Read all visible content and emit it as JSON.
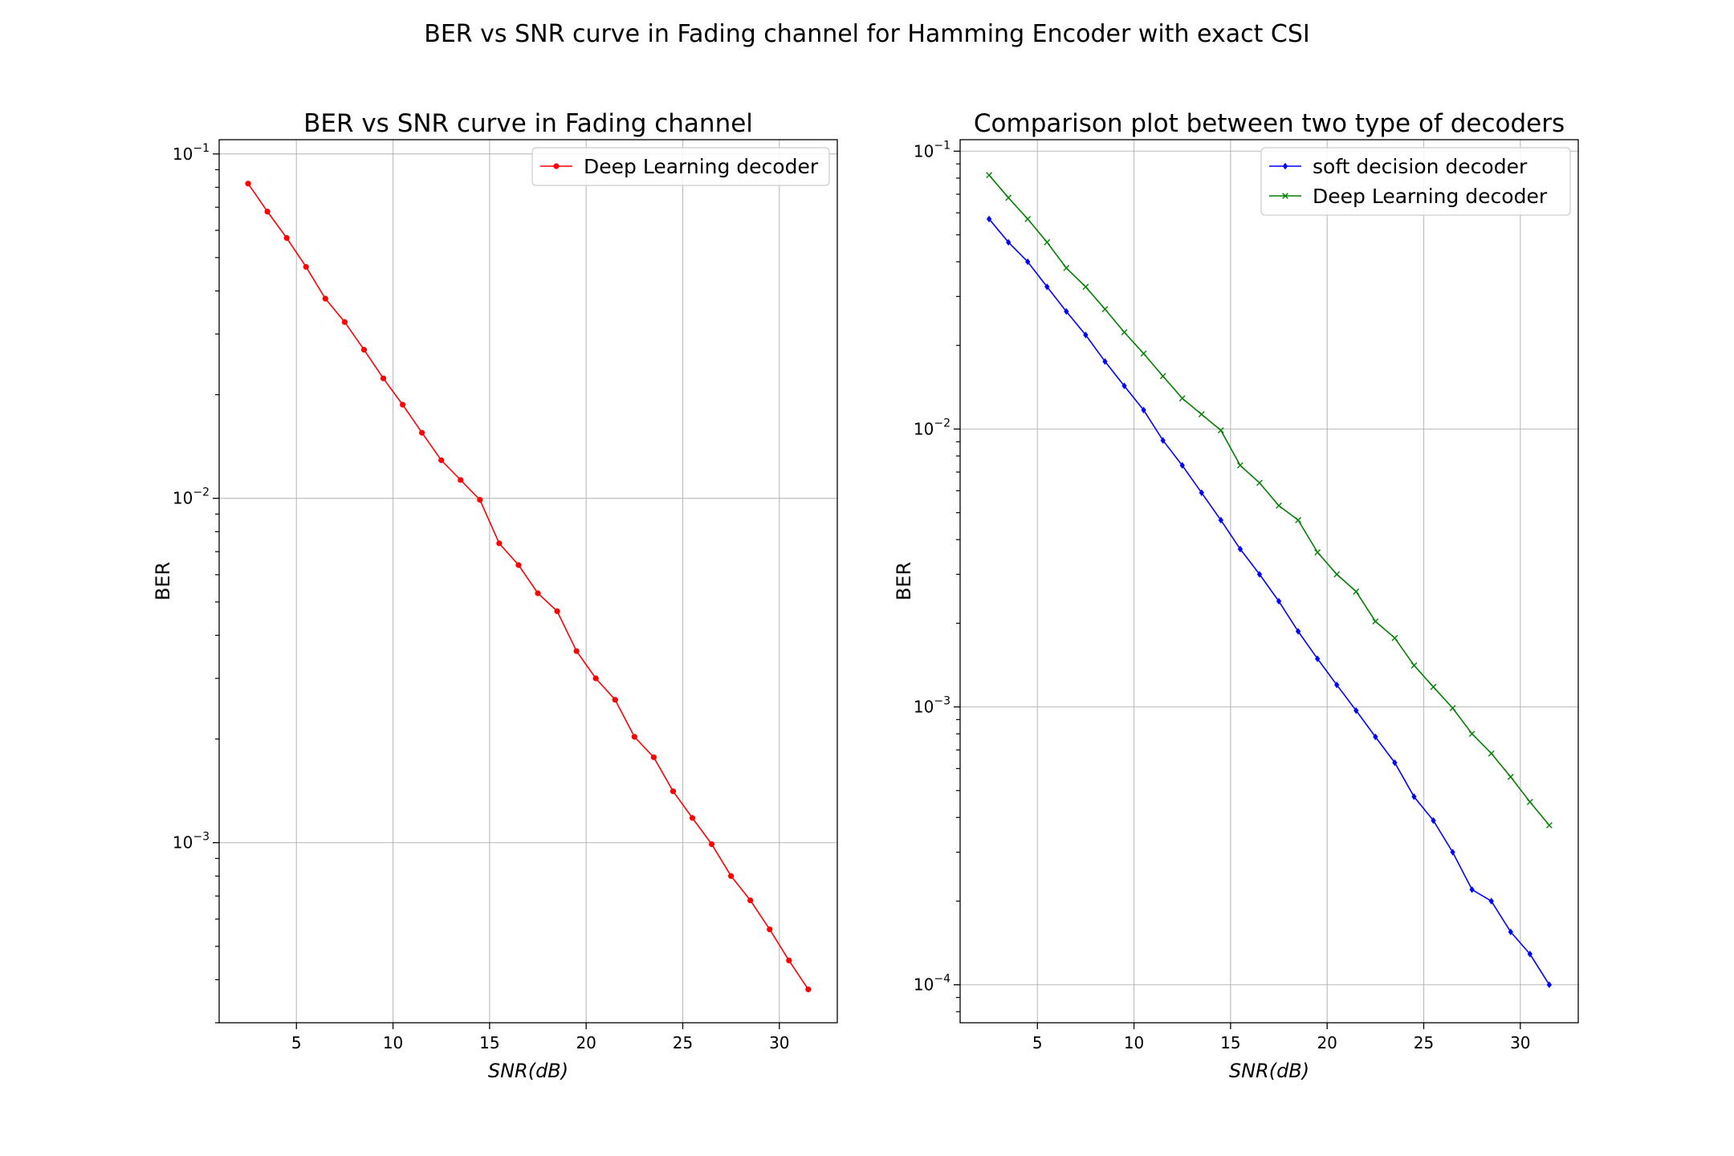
{
  "figure": {
    "suptitle": "BER vs SNR curve in Fading channel for Hamming Encoder with exact CSI"
  },
  "chart_data": [
    {
      "type": "line",
      "title": "BER vs SNR curve in Fading channel",
      "xlabel": "SNR(dB)",
      "ylabel": "BER",
      "yscale": "log",
      "xlim": [
        1,
        33
      ],
      "ylim": [
        0.0003,
        0.11
      ],
      "xticks": [
        5,
        10,
        15,
        20,
        25,
        30
      ],
      "yticks": [
        {
          "value": 0.1,
          "base": "10",
          "exp": "−1"
        },
        {
          "value": 0.01,
          "base": "10",
          "exp": "−2"
        },
        {
          "value": 0.001,
          "base": "10",
          "exp": "−3"
        }
      ],
      "grid": true,
      "legend": "top-right",
      "series": [
        {
          "name": "Deep Learning decoder",
          "color": "#ff0000",
          "marker": "dot",
          "x": [
            2.5,
            3.5,
            4.5,
            5.5,
            6.5,
            7.5,
            8.5,
            9.5,
            10.5,
            11.5,
            12.5,
            13.5,
            14.5,
            15.5,
            16.5,
            17.5,
            18.5,
            19.5,
            20.5,
            21.5,
            22.5,
            23.5,
            24.5,
            25.5,
            26.5,
            27.5,
            28.5,
            29.5,
            30.5,
            31.5
          ],
          "values": [
            0.082,
            0.068,
            0.057,
            0.047,
            0.038,
            0.0325,
            0.027,
            0.0223,
            0.0187,
            0.0155,
            0.0129,
            0.0113,
            0.0099,
            0.0074,
            0.0064,
            0.0053,
            0.0047,
            0.0036,
            0.003,
            0.0026,
            0.00203,
            0.00177,
            0.00141,
            0.00118,
            0.00099,
            0.0008,
            0.00068,
            0.00056,
            0.000455,
            0.000375
          ]
        }
      ]
    },
    {
      "type": "line",
      "title": "Comparison plot between two type of decoders",
      "xlabel": "SNR(dB)",
      "ylabel": "BER",
      "yscale": "log",
      "xlim": [
        1,
        33
      ],
      "ylim": [
        7.3e-05,
        0.11
      ],
      "xticks": [
        5,
        10,
        15,
        20,
        25,
        30
      ],
      "yticks": [
        {
          "value": 0.1,
          "base": "10",
          "exp": "−1"
        },
        {
          "value": 0.01,
          "base": "10",
          "exp": "−2"
        },
        {
          "value": 0.001,
          "base": "10",
          "exp": "−3"
        },
        {
          "value": 0.0001,
          "base": "10",
          "exp": "−4"
        }
      ],
      "grid": true,
      "legend": "top-right",
      "series": [
        {
          "name": "soft decision decoder",
          "color": "#0000ff",
          "marker": "diamond",
          "x": [
            2.5,
            3.5,
            4.5,
            5.5,
            6.5,
            7.5,
            8.5,
            9.5,
            10.5,
            11.5,
            12.5,
            13.5,
            14.5,
            15.5,
            16.5,
            17.5,
            18.5,
            19.5,
            20.5,
            21.5,
            22.5,
            23.5,
            24.5,
            25.5,
            26.5,
            27.5,
            28.5,
            29.5,
            30.5,
            31.5
          ],
          "values": [
            0.057,
            0.047,
            0.04,
            0.0325,
            0.0265,
            0.0218,
            0.0175,
            0.0143,
            0.0117,
            0.0091,
            0.0074,
            0.0059,
            0.0047,
            0.0037,
            0.003,
            0.0024,
            0.00187,
            0.00149,
            0.0012,
            0.00097,
            0.00078,
            0.00063,
            0.000475,
            0.00039,
            0.0003,
            0.00022,
            0.0002,
            0.000155,
            0.000129,
            0.0001
          ]
        },
        {
          "name": "Deep Learning decoder",
          "color": "#008000",
          "marker": "x",
          "x": [
            2.5,
            3.5,
            4.5,
            5.5,
            6.5,
            7.5,
            8.5,
            9.5,
            10.5,
            11.5,
            12.5,
            13.5,
            14.5,
            15.5,
            16.5,
            17.5,
            18.5,
            19.5,
            20.5,
            21.5,
            22.5,
            23.5,
            24.5,
            25.5,
            26.5,
            27.5,
            28.5,
            29.5,
            30.5,
            31.5
          ],
          "values": [
            0.082,
            0.068,
            0.057,
            0.047,
            0.038,
            0.0325,
            0.027,
            0.0223,
            0.0187,
            0.0155,
            0.0129,
            0.0113,
            0.0099,
            0.0074,
            0.0064,
            0.0053,
            0.0047,
            0.0036,
            0.003,
            0.0026,
            0.00203,
            0.00177,
            0.00141,
            0.00118,
            0.00099,
            0.0008,
            0.00068,
            0.00056,
            0.000455,
            0.000375
          ]
        }
      ]
    }
  ]
}
